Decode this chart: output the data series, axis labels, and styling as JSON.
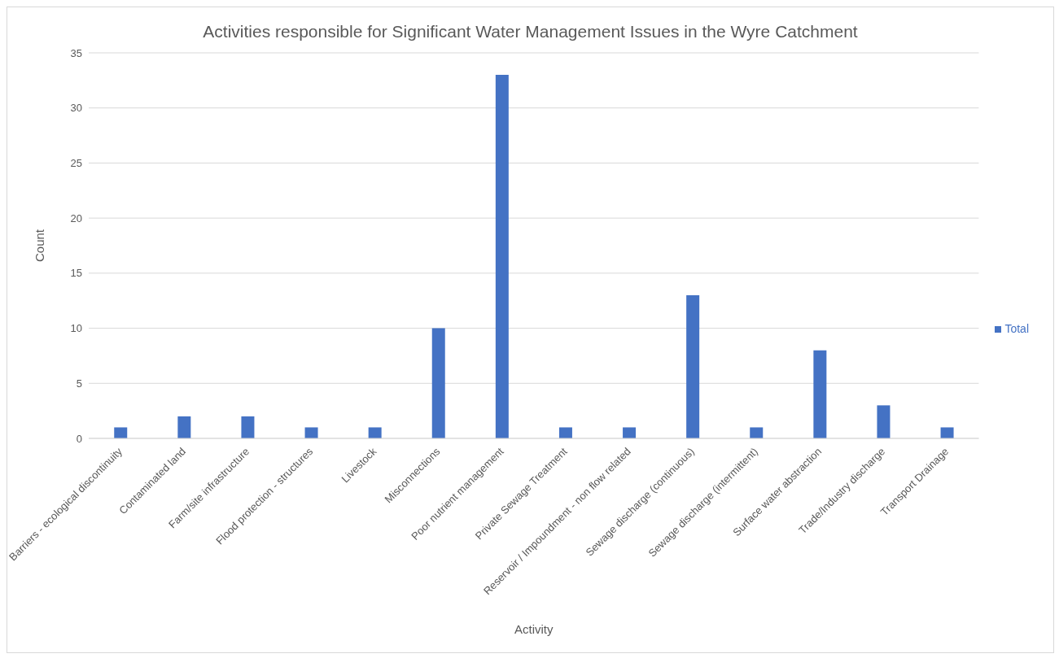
{
  "chart_data": {
    "type": "bar",
    "title": "Activities responsible for Significant Water Management Issues in the Wyre Catchment",
    "xlabel": "Activity",
    "ylabel": "Count",
    "categories": [
      "Barriers - ecological discontinuity",
      "Contaminated land",
      "Farm/site infrastructure",
      "Flood protection - structures",
      "Livestock",
      "Misconnections",
      "Poor nutrient management",
      "Private Sewage Treatment",
      "Reservoir / Impoundment - non flow related",
      "Sewage discharge (continuous)",
      "Sewage discharge (intermittent)",
      "Surface water abstraction",
      "Trade/Industry discharge",
      "Transport Drainage"
    ],
    "series": [
      {
        "name": "Total",
        "color": "#4472c4",
        "values": [
          1,
          2,
          2,
          1,
          1,
          10,
          33,
          1,
          1,
          13,
          1,
          8,
          3,
          1
        ]
      }
    ],
    "ylim": [
      0,
      35
    ],
    "yticks": [
      0,
      5,
      10,
      15,
      20,
      25,
      30,
      35
    ],
    "grid": "y",
    "legend": "right"
  }
}
